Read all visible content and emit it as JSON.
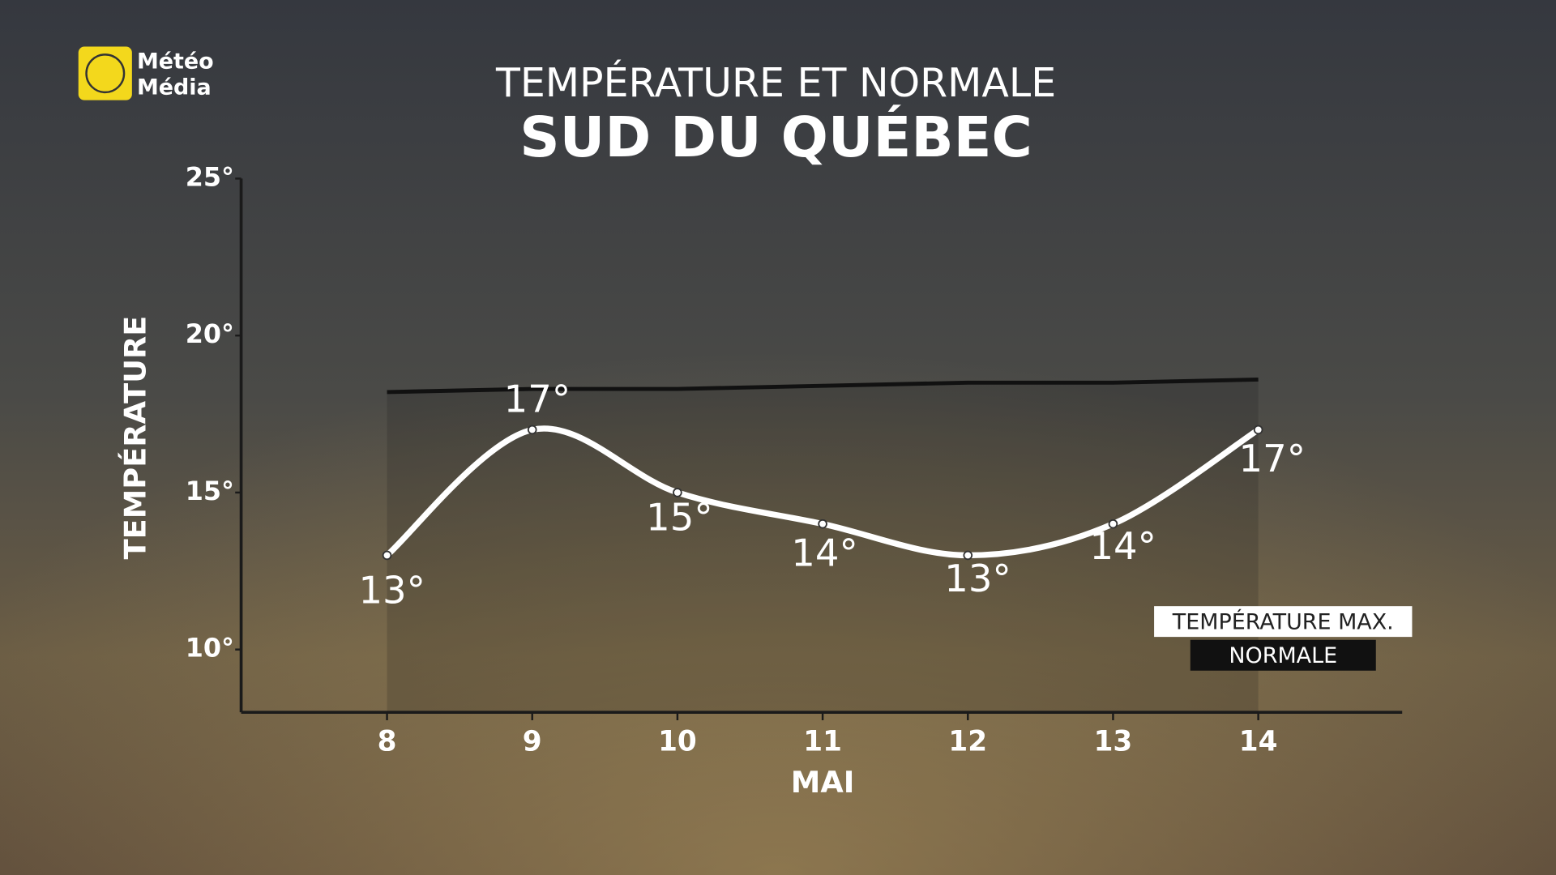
{
  "brand": [
    "Météo",
    "Média"
  ],
  "chart_data": {
    "type": "line",
    "title": "TEMPÉRATURE ET NORMALE",
    "subtitle": "SUD DU QUÉBEC",
    "y_label": "TEMPÉRATURE",
    "x_label": "MAI",
    "categories": [
      "8",
      "9",
      "10",
      "11",
      "12",
      "13",
      "14"
    ],
    "series": [
      {
        "name": "TEMPÉRATURE MAX.",
        "color": "#ffffff",
        "smooth": true,
        "markers": true,
        "values": [
          13,
          17,
          15,
          14,
          13,
          14,
          17
        ],
        "value_labels": [
          "13°",
          "17°",
          "15°",
          "14°",
          "13°",
          "14°",
          "17°"
        ]
      },
      {
        "name": "NORMALE",
        "color": "#111111",
        "smooth": false,
        "markers": false,
        "values": [
          18.2,
          18.3,
          18.3,
          18.4,
          18.5,
          18.5,
          18.6
        ]
      }
    ],
    "ylim": [
      8,
      25
    ],
    "yticks": [
      {
        "value": 10,
        "label": "10°"
      },
      {
        "value": 15,
        "label": "15°"
      },
      {
        "value": 20,
        "label": "20°"
      },
      {
        "value": 25,
        "label": "25°"
      }
    ],
    "grid": false
  }
}
